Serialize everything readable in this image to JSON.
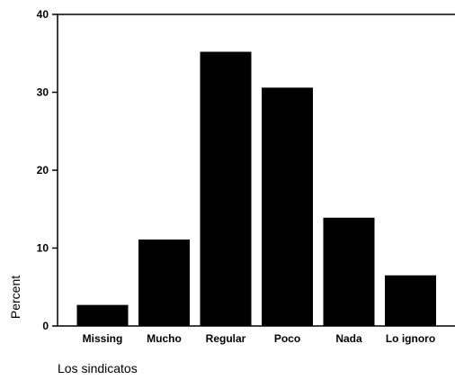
{
  "chart_data": {
    "type": "bar",
    "categories": [
      "Missing",
      "Mucho",
      "Regular",
      "Poco",
      "Nada",
      "Lo ignoro"
    ],
    "values": [
      2.7,
      11.1,
      35.2,
      30.6,
      13.9,
      6.5
    ],
    "ylabel": "Percent",
    "xlabel": "Los sindicatos",
    "yticks": [
      0,
      10,
      20,
      30,
      40
    ],
    "ylim": [
      0,
      40
    ],
    "grid": false,
    "legend": "none",
    "bar_color": "#000000"
  }
}
